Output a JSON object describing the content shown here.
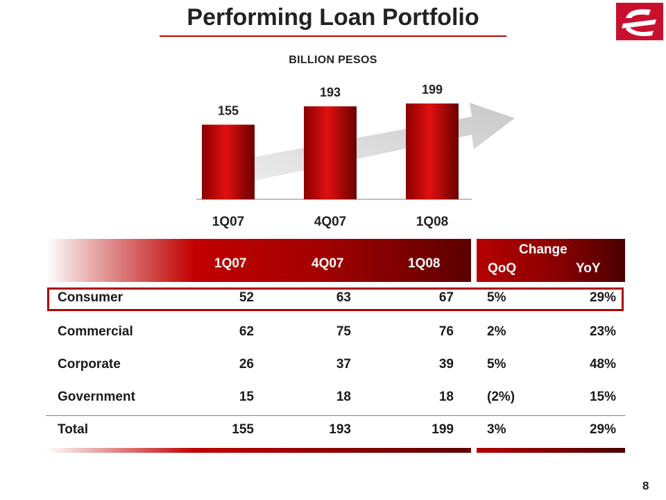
{
  "header": {
    "title": "Performing Loan Portfolio",
    "logo_color": "#c8102e"
  },
  "chart_data": {
    "type": "bar",
    "subtitle": "BILLION PESOS",
    "categories": [
      "1Q07",
      "4Q07",
      "1Q08"
    ],
    "values": [
      155,
      193,
      199
    ],
    "ylim": [
      0,
      199
    ],
    "grid": false,
    "bar_color": "#c00000",
    "trend_arrow": true
  },
  "table": {
    "columns": [
      "1Q07",
      "4Q07",
      "1Q08"
    ],
    "change_label": "Change",
    "change_columns": [
      "QoQ",
      "YoY"
    ],
    "rows": [
      {
        "name": "Consumer",
        "values": [
          "52",
          "63",
          "67",
          "5%",
          "29%"
        ],
        "highlight": true
      },
      {
        "name": "Commercial",
        "values": [
          "62",
          "75",
          "76",
          "2%",
          "23%"
        ]
      },
      {
        "name": "Corporate",
        "values": [
          "26",
          "37",
          "39",
          "5%",
          "48%"
        ]
      },
      {
        "name": "Government",
        "values": [
          "15",
          "18",
          "18",
          "(2%)",
          "15%"
        ]
      },
      {
        "name": "Total",
        "values": [
          "155",
          "193",
          "199",
          "3%",
          "29%"
        ]
      }
    ]
  },
  "page_number": "8"
}
